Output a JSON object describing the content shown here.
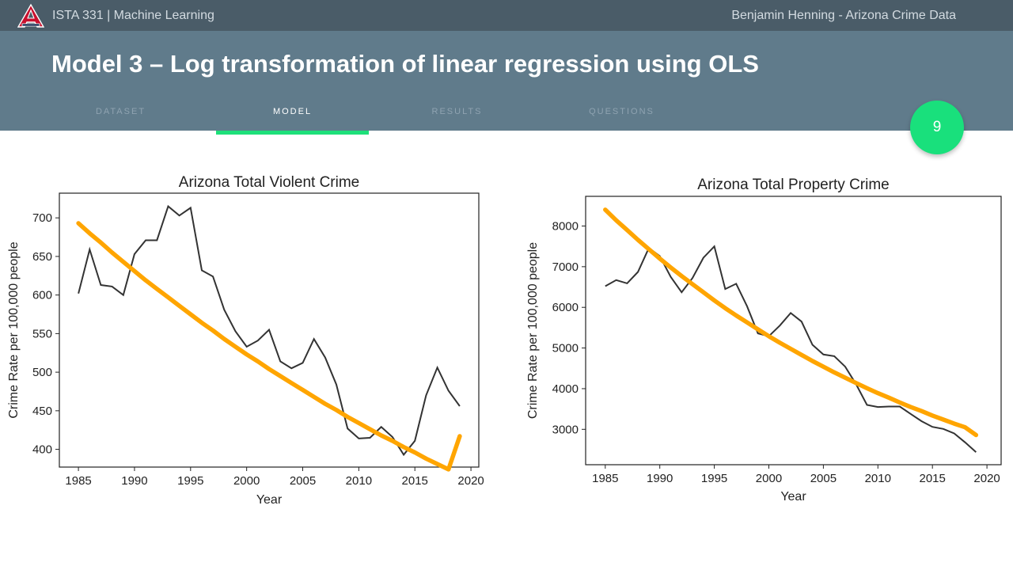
{
  "topbar": {
    "course": "ISTA 331 | Machine Learning",
    "author": "Benjamin Henning - Arizona Crime Data",
    "logo_icon": "university-of-arizona-logo"
  },
  "slide": {
    "title": "Model 3 – Log transformation of linear regression using OLS",
    "page_number": "9"
  },
  "nav": {
    "tabs": [
      {
        "label": "DATASET"
      },
      {
        "label": "MODEL"
      },
      {
        "label": "RESULTS"
      },
      {
        "label": "QUESTIONS"
      }
    ],
    "active_index": 1
  },
  "colors": {
    "topbar": "#4a5c68",
    "header": "#607b8b",
    "accent": "#1ee07a",
    "fit_line": "#ffa500",
    "data_line": "#333333"
  },
  "chart_data": [
    {
      "type": "line",
      "title": "Arizona Total Violent Crime",
      "xlabel": "Year",
      "ylabel": "Crime Rate per 100,000 people",
      "xlim": [
        1983.3,
        2020.7
      ],
      "ylim": [
        377,
        732
      ],
      "xticks": [
        "1985",
        "1990",
        "1995",
        "2000",
        "2005",
        "2010",
        "2015",
        "2020"
      ],
      "yticks": [
        "400",
        "450",
        "500",
        "550",
        "600",
        "650",
        "700"
      ],
      "x": [
        1985,
        1986,
        1987,
        1988,
        1989,
        1990,
        1991,
        1992,
        1993,
        1994,
        1995,
        1996,
        1997,
        1998,
        1999,
        2000,
        2001,
        2002,
        2003,
        2004,
        2005,
        2006,
        2007,
        2008,
        2009,
        2010,
        2011,
        2012,
        2013,
        2014,
        2015,
        2016,
        2017,
        2018,
        2019
      ],
      "series": [
        {
          "values": [
            602,
            659,
            613,
            611,
            600,
            653,
            671,
            671,
            715,
            703,
            713,
            632,
            624,
            581,
            553,
            533,
            541,
            555,
            514,
            505,
            512,
            543,
            519,
            484,
            427,
            414,
            415,
            429,
            416,
            393,
            411,
            470,
            506,
            476,
            456
          ]
        },
        {
          "values": [
            693,
            680,
            668,
            655,
            643,
            631,
            619,
            608,
            597,
            586,
            575,
            564,
            554,
            543,
            533,
            523,
            514,
            504,
            495,
            486,
            477,
            468,
            459,
            451,
            442,
            434,
            426,
            418,
            411,
            403,
            396,
            388,
            381,
            374,
            417
          ]
        }
      ]
    },
    {
      "type": "line",
      "title": "Arizona Total Property Crime",
      "xlabel": "Year",
      "ylabel": "Crime Rate per 100,000 people",
      "xlim": [
        1983.2,
        2021.3
      ],
      "ylim": [
        2130,
        8730
      ],
      "xticks": [
        "1985",
        "1990",
        "1995",
        "2000",
        "2005",
        "2010",
        "2015",
        "2020"
      ],
      "yticks": [
        "3000",
        "4000",
        "5000",
        "6000",
        "7000",
        "8000"
      ],
      "x": [
        1985,
        1986,
        1987,
        1988,
        1989,
        1990,
        1991,
        1992,
        1993,
        1994,
        1995,
        1996,
        1997,
        1998,
        1999,
        2000,
        2001,
        2002,
        2003,
        2004,
        2005,
        2006,
        2007,
        2008,
        2009,
        2010,
        2011,
        2012,
        2013,
        2014,
        2015,
        2016,
        2017,
        2018,
        2019
      ],
      "series": [
        {
          "values": [
            6520,
            6670,
            6590,
            6870,
            7460,
            7260,
            6750,
            6370,
            6720,
            7220,
            7500,
            6450,
            6580,
            6030,
            5360,
            5290,
            5550,
            5860,
            5650,
            5080,
            4840,
            4800,
            4540,
            4110,
            3600,
            3550,
            3560,
            3560,
            3380,
            3200,
            3060,
            3010,
            2900,
            2680,
            2440
          ]
        },
        {
          "values": [
            8400,
            8140,
            7900,
            7660,
            7430,
            7200,
            6980,
            6770,
            6570,
            6370,
            6170,
            5980,
            5800,
            5630,
            5460,
            5290,
            5130,
            4980,
            4830,
            4680,
            4540,
            4400,
            4270,
            4140,
            4010,
            3890,
            3780,
            3660,
            3550,
            3450,
            3340,
            3240,
            3140,
            3050,
            2860
          ]
        }
      ]
    }
  ]
}
